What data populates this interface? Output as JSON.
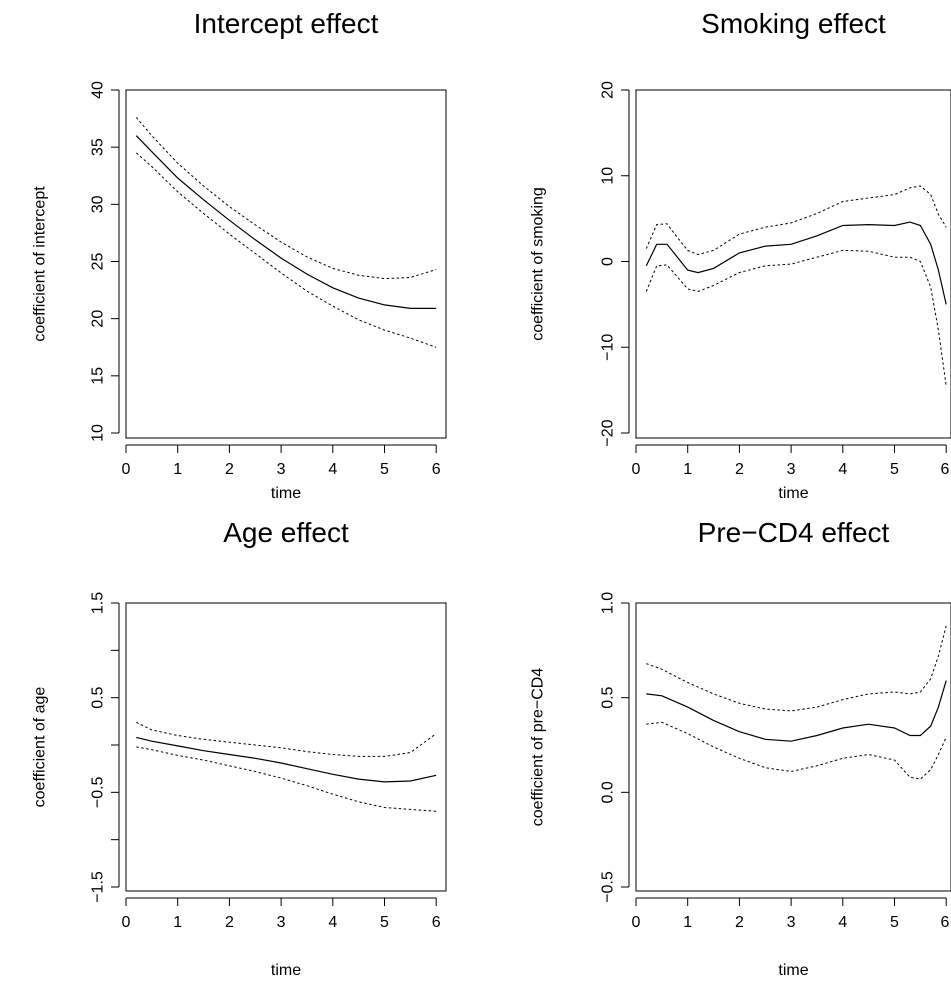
{
  "chart_data": [
    {
      "type": "line",
      "title": "Intercept effect",
      "xlabel": "time",
      "ylabel": "coefficient of intercept",
      "xlim": [
        0,
        6
      ],
      "ylim": [
        10,
        40
      ],
      "xticks": [
        "0",
        "1",
        "2",
        "3",
        "4",
        "5",
        "6"
      ],
      "yticks": [
        "10",
        "15",
        "20",
        "25",
        "30",
        "35",
        "40"
      ],
      "grid": false,
      "series": [
        {
          "style": "solid",
          "x": [
            0.2,
            0.5,
            1,
            1.5,
            2,
            2.5,
            3,
            3.5,
            4,
            4.5,
            5,
            5.5,
            6
          ],
          "y": [
            36,
            34.6,
            32.3,
            30.4,
            28.6,
            26.9,
            25.3,
            23.9,
            22.7,
            21.8,
            21.2,
            20.9,
            20.9
          ]
        },
        {
          "style": "dotted",
          "x": [
            0.2,
            0.5,
            1,
            1.5,
            2,
            2.5,
            3,
            3.5,
            4,
            4.5,
            5,
            5.5,
            6
          ],
          "y": [
            37.6,
            36,
            33.6,
            31.6,
            29.8,
            28.2,
            26.7,
            25.4,
            24.4,
            23.8,
            23.5,
            23.6,
            24.3
          ]
        },
        {
          "style": "dotted",
          "x": [
            0.2,
            0.5,
            1,
            1.5,
            2,
            2.5,
            3,
            3.5,
            4,
            4.5,
            5,
            5.5,
            6
          ],
          "y": [
            34.5,
            33.3,
            31.1,
            29.2,
            27.4,
            25.7,
            24,
            22.4,
            21.1,
            19.9,
            19,
            18.3,
            17.5
          ]
        }
      ]
    },
    {
      "type": "line",
      "title": "Smoking effect",
      "xlabel": "time",
      "ylabel": "coefficient of smoking",
      "xlim": [
        0,
        6
      ],
      "ylim": [
        -20,
        20
      ],
      "xticks": [
        "0",
        "1",
        "2",
        "3",
        "4",
        "5",
        "6"
      ],
      "yticks": [
        "−20",
        "−10",
        "0",
        "10",
        "20"
      ],
      "grid": false,
      "series": [
        {
          "style": "solid",
          "x": [
            0.2,
            0.4,
            0.6,
            0.8,
            1,
            1.2,
            1.5,
            2,
            2.5,
            3,
            3.5,
            4,
            4.5,
            5,
            5.3,
            5.5,
            5.7,
            5.85,
            6
          ],
          "y": [
            -0.5,
            2,
            2,
            0.5,
            -1,
            -1.3,
            -0.8,
            1,
            1.8,
            2,
            3,
            4.2,
            4.3,
            4.2,
            4.6,
            4.2,
            2,
            -1,
            -5
          ]
        },
        {
          "style": "dotted",
          "x": [
            0.2,
            0.4,
            0.6,
            0.8,
            1,
            1.2,
            1.5,
            2,
            2.5,
            3,
            3.5,
            4,
            4.5,
            5,
            5.3,
            5.5,
            5.7,
            5.85,
            6
          ],
          "y": [
            1.5,
            4.3,
            4.4,
            2.8,
            1.3,
            0.8,
            1.3,
            3.2,
            4,
            4.5,
            5.6,
            7,
            7.4,
            7.8,
            8.6,
            8.8,
            7.8,
            5.5,
            4
          ]
        },
        {
          "style": "dotted",
          "x": [
            0.2,
            0.4,
            0.6,
            0.8,
            1,
            1.2,
            1.5,
            2,
            2.5,
            3,
            3.5,
            4,
            4.5,
            5,
            5.3,
            5.5,
            5.7,
            5.85,
            6
          ],
          "y": [
            -3.5,
            -0.5,
            -0.4,
            -1.8,
            -3.2,
            -3.5,
            -2.8,
            -1.3,
            -0.5,
            -0.3,
            0.5,
            1.3,
            1.2,
            0.5,
            0.5,
            0,
            -3,
            -8,
            -14.5
          ]
        }
      ]
    },
    {
      "type": "line",
      "title": "Age effect",
      "xlabel": "time",
      "ylabel": "coefficient of age",
      "xlim": [
        0,
        6
      ],
      "ylim": [
        -1.5,
        1.5
      ],
      "xticks": [
        "0",
        "1",
        "2",
        "3",
        "4",
        "5",
        "6"
      ],
      "yticks": [
        "−1.5",
        "",
        "−0.5",
        "",
        "0.5",
        "",
        "1.5"
      ],
      "grid": false,
      "series": [
        {
          "style": "solid",
          "x": [
            0.2,
            0.5,
            1,
            1.5,
            2,
            2.5,
            3,
            3.5,
            4,
            4.5,
            5,
            5.5,
            6
          ],
          "y": [
            0.08,
            0.04,
            -0.01,
            -0.06,
            -0.1,
            -0.14,
            -0.19,
            -0.25,
            -0.31,
            -0.36,
            -0.39,
            -0.38,
            -0.32
          ]
        },
        {
          "style": "dotted",
          "x": [
            0.2,
            0.5,
            1,
            1.5,
            2,
            2.5,
            3,
            3.5,
            4,
            4.5,
            5,
            5.5,
            6
          ],
          "y": [
            0.24,
            0.16,
            0.1,
            0.06,
            0.03,
            0,
            -0.03,
            -0.07,
            -0.1,
            -0.12,
            -0.12,
            -0.08,
            0.12
          ]
        },
        {
          "style": "dotted",
          "x": [
            0.2,
            0.5,
            1,
            1.5,
            2,
            2.5,
            3,
            3.5,
            4,
            4.5,
            5,
            5.5,
            6
          ],
          "y": [
            -0.02,
            -0.05,
            -0.11,
            -0.16,
            -0.22,
            -0.28,
            -0.35,
            -0.43,
            -0.52,
            -0.6,
            -0.66,
            -0.68,
            -0.7
          ]
        }
      ]
    },
    {
      "type": "line",
      "title": "Pre−CD4 effect",
      "xlabel": "time",
      "ylabel": "coefficient of pre−CD4",
      "xlim": [
        0,
        6
      ],
      "ylim": [
        -0.5,
        1.0
      ],
      "xticks": [
        "0",
        "1",
        "2",
        "3",
        "4",
        "5",
        "6"
      ],
      "yticks": [
        "−0.5",
        "0.0",
        "0.5",
        "1.0"
      ],
      "grid": false,
      "series": [
        {
          "style": "solid",
          "x": [
            0.2,
            0.5,
            1,
            1.5,
            2,
            2.5,
            3,
            3.5,
            4,
            4.5,
            5,
            5.3,
            5.5,
            5.7,
            5.85,
            6
          ],
          "y": [
            0.52,
            0.51,
            0.45,
            0.38,
            0.32,
            0.28,
            0.27,
            0.3,
            0.34,
            0.36,
            0.34,
            0.3,
            0.3,
            0.35,
            0.45,
            0.59
          ]
        },
        {
          "style": "dotted",
          "x": [
            0.2,
            0.5,
            1,
            1.5,
            2,
            2.5,
            3,
            3.5,
            4,
            4.5,
            5,
            5.3,
            5.5,
            5.7,
            5.85,
            6
          ],
          "y": [
            0.68,
            0.65,
            0.58,
            0.52,
            0.47,
            0.44,
            0.43,
            0.45,
            0.49,
            0.52,
            0.53,
            0.52,
            0.53,
            0.6,
            0.72,
            0.88
          ]
        },
        {
          "style": "dotted",
          "x": [
            0.2,
            0.5,
            1,
            1.5,
            2,
            2.5,
            3,
            3.5,
            4,
            4.5,
            5,
            5.3,
            5.5,
            5.7,
            5.85,
            6
          ],
          "y": [
            0.36,
            0.37,
            0.31,
            0.24,
            0.18,
            0.13,
            0.11,
            0.14,
            0.18,
            0.2,
            0.17,
            0.08,
            0.07,
            0.12,
            0.2,
            0.29
          ]
        }
      ]
    }
  ]
}
